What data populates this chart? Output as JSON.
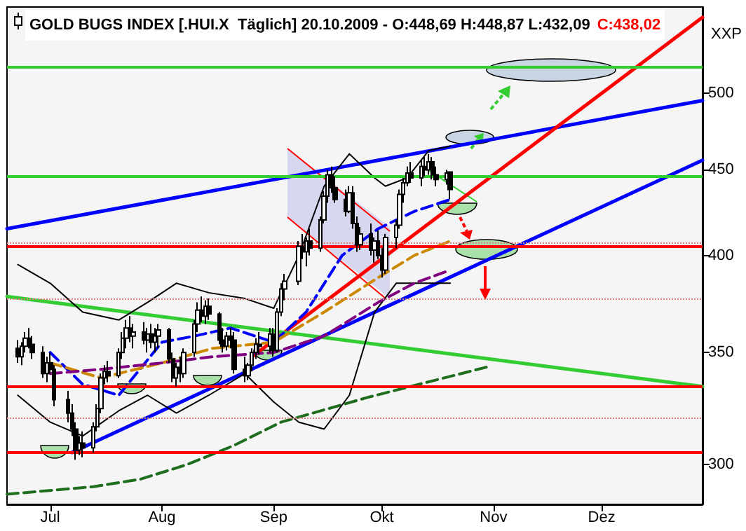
{
  "chart_data": {
    "type": "candlestick",
    "title": "GOLD BUGS INDEX [.HUI.X  Täglich] 20.10.2009 - O:448,69 H:448,87 L:432,09",
    "annotations": [
      "C:438,02"
    ],
    "ylabel": "XXP",
    "log": "y",
    "grid": false,
    "xlim": [
      "2009-06-19",
      "2009-12-29"
    ],
    "xticks": [
      {
        "value": "2009-07-01",
        "label": "Jul"
      },
      {
        "value": "2009-08-01",
        "label": "Aug"
      },
      {
        "value": "2009-09-01",
        "label": "Sep"
      },
      {
        "value": "2009-10-01",
        "label": "Okt"
      },
      {
        "value": "2009-11-01",
        "label": "Nov"
      },
      {
        "value": "2009-12-01",
        "label": "Dez"
      }
    ],
    "ylim": [
      284,
      563
    ],
    "yticks": [
      300,
      350,
      400,
      450,
      500
    ],
    "x": [
      "2009-06-22",
      "2009-06-23",
      "2009-06-24",
      "2009-06-25",
      "2009-06-26",
      "2009-06-29",
      "2009-06-30",
      "2009-07-01",
      "2009-07-02",
      "2009-07-06",
      "2009-07-07",
      "2009-07-08",
      "2009-07-09",
      "2009-07-10",
      "2009-07-13",
      "2009-07-14",
      "2009-07-15",
      "2009-07-16",
      "2009-07-17",
      "2009-07-20",
      "2009-07-21",
      "2009-07-22",
      "2009-07-23",
      "2009-07-24",
      "2009-07-27",
      "2009-07-28",
      "2009-07-29",
      "2009-07-30",
      "2009-07-31",
      "2009-08-03",
      "2009-08-04",
      "2009-08-05",
      "2009-08-06",
      "2009-08-07",
      "2009-08-10",
      "2009-08-11",
      "2009-08-12",
      "2009-08-13",
      "2009-08-14",
      "2009-08-17",
      "2009-08-18",
      "2009-08-19",
      "2009-08-20",
      "2009-08-21",
      "2009-08-24",
      "2009-08-25",
      "2009-08-26",
      "2009-08-27",
      "2009-08-28",
      "2009-08-31",
      "2009-09-01",
      "2009-09-02",
      "2009-09-03",
      "2009-09-04",
      "2009-09-08",
      "2009-09-09",
      "2009-09-10",
      "2009-09-11",
      "2009-09-14",
      "2009-09-15",
      "2009-09-16",
      "2009-09-17",
      "2009-09-18",
      "2009-09-21",
      "2009-09-22",
      "2009-09-23",
      "2009-09-24",
      "2009-09-25",
      "2009-09-28",
      "2009-09-29",
      "2009-09-30",
      "2009-10-01",
      "2009-10-02",
      "2009-10-05",
      "2009-10-06",
      "2009-10-07",
      "2009-10-08",
      "2009-10-09",
      "2009-10-12",
      "2009-10-13",
      "2009-10-14",
      "2009-10-15",
      "2009-10-16",
      "2009-10-19",
      "2009-10-20"
    ],
    "ohlc": [
      [
        352,
        356,
        345,
        348
      ],
      [
        348,
        355,
        344,
        353
      ],
      [
        353,
        360,
        350,
        357
      ],
      [
        357,
        362,
        352,
        354
      ],
      [
        354,
        358,
        347,
        350
      ],
      [
        350,
        353,
        338,
        340
      ],
      [
        340,
        348,
        336,
        345
      ],
      [
        345,
        350,
        340,
        342
      ],
      [
        342,
        344,
        325,
        328
      ],
      [
        328,
        332,
        318,
        322
      ],
      [
        322,
        326,
        312,
        315
      ],
      [
        315,
        318,
        302,
        306
      ],
      [
        306,
        312,
        304,
        309
      ],
      [
        309,
        314,
        303,
        307
      ],
      [
        307,
        318,
        305,
        316
      ],
      [
        316,
        326,
        314,
        324
      ],
      [
        324,
        340,
        322,
        338
      ],
      [
        338,
        344,
        335,
        341
      ],
      [
        341,
        346,
        336,
        339
      ],
      [
        339,
        352,
        338,
        350
      ],
      [
        350,
        360,
        347,
        357
      ],
      [
        357,
        366,
        352,
        362
      ],
      [
        362,
        368,
        355,
        358
      ],
      [
        358,
        364,
        352,
        360
      ],
      [
        360,
        365,
        354,
        356
      ],
      [
        356,
        362,
        350,
        359
      ],
      [
        359,
        364,
        352,
        355
      ],
      [
        355,
        362,
        350,
        358
      ],
      [
        358,
        364,
        352,
        361
      ],
      [
        361,
        362,
        345,
        347
      ],
      [
        347,
        350,
        336,
        338
      ],
      [
        338,
        345,
        334,
        343
      ],
      [
        343,
        348,
        336,
        340
      ],
      [
        340,
        352,
        338,
        350
      ],
      [
        350,
        366,
        348,
        364
      ],
      [
        364,
        375,
        360,
        371
      ],
      [
        371,
        378,
        365,
        368
      ],
      [
        368,
        376,
        364,
        373
      ],
      [
        373,
        377,
        366,
        369
      ],
      [
        369,
        370,
        354,
        356
      ],
      [
        356,
        362,
        350,
        353
      ],
      [
        353,
        360,
        351,
        358
      ],
      [
        358,
        362,
        352,
        356
      ],
      [
        356,
        360,
        340,
        342
      ],
      [
        342,
        348,
        336,
        339
      ],
      [
        339,
        345,
        337,
        344
      ],
      [
        344,
        352,
        341,
        350
      ],
      [
        350,
        357,
        347,
        354
      ],
      [
        354,
        360,
        349,
        353
      ],
      [
        353,
        362,
        350,
        359
      ],
      [
        359,
        362,
        348,
        351
      ],
      [
        351,
        372,
        350,
        370
      ],
      [
        370,
        385,
        368,
        382
      ],
      [
        382,
        390,
        376,
        386
      ],
      [
        386,
        408,
        384,
        405
      ],
      [
        405,
        412,
        398,
        402
      ],
      [
        402,
        410,
        394,
        408
      ],
      [
        408,
        415,
        400,
        404
      ],
      [
        404,
        422,
        402,
        420
      ],
      [
        420,
        437,
        418,
        434
      ],
      [
        434,
        450,
        430,
        447
      ],
      [
        447,
        452,
        436,
        439
      ],
      [
        439,
        446,
        430,
        432
      ],
      [
        432,
        438,
        422,
        425
      ],
      [
        425,
        440,
        424,
        436
      ],
      [
        436,
        440,
        415,
        418
      ],
      [
        418,
        422,
        402,
        406
      ],
      [
        406,
        416,
        403,
        412
      ],
      [
        412,
        418,
        400,
        403
      ],
      [
        403,
        410,
        396,
        408
      ],
      [
        408,
        414,
        398,
        400
      ],
      [
        400,
        404,
        388,
        392
      ],
      [
        392,
        412,
        390,
        410
      ],
      [
        410,
        420,
        404,
        417
      ],
      [
        417,
        438,
        415,
        435
      ],
      [
        435,
        445,
        430,
        442
      ],
      [
        442,
        452,
        440,
        448
      ],
      [
        448,
        455,
        442,
        445
      ],
      [
        445,
        456,
        440,
        452
      ],
      [
        452,
        458,
        446,
        450
      ],
      [
        450,
        460,
        447,
        455
      ],
      [
        455,
        458,
        444,
        447
      ],
      [
        447,
        452,
        440,
        444
      ],
      [
        444,
        450,
        441,
        448
      ],
      [
        448.69,
        448.87,
        432.09,
        438.02
      ]
    ],
    "series": [
      {
        "type": "line",
        "color": "#0000ff",
        "line_style": "solid",
        "x": [
          "2009-06-19",
          "2009-12-29"
        ],
        "values": [
          415,
          495
        ]
      },
      {
        "type": "line",
        "color": "#0000ff",
        "line_style": "solid",
        "x": [
          "2009-07-07",
          "2009-12-29"
        ],
        "values": [
          305,
          456
        ]
      },
      {
        "type": "line",
        "color": "#ff0000",
        "line_style": "solid",
        "x": [
          "2009-08-26",
          "2009-12-29"
        ],
        "values": [
          348,
          555
        ]
      },
      {
        "type": "line",
        "color": "#33cc33",
        "line_style": "solid",
        "x": [
          "2009-06-19",
          "2009-12-29"
        ],
        "values": [
          378,
          334
        ]
      },
      {
        "type": "line",
        "color": "#1e6e1e",
        "line_style": "dashed",
        "x": [
          "2009-06-19",
          "2009-07-13",
          "2009-07-26",
          "2009-08-08",
          "2009-08-21",
          "2009-09-03",
          "2009-09-27",
          "2009-10-30"
        ],
        "values": [
          288,
          291,
          294,
          300,
          308,
          318,
          329,
          343
        ]
      },
      {
        "type": "line",
        "color": "#000000",
        "line_style": "solid",
        "x": [
          "2009-06-22",
          "2009-07-01",
          "2009-07-10",
          "2009-07-20",
          "2009-07-28",
          "2009-08-05",
          "2009-08-14",
          "2009-08-24",
          "2009-09-01",
          "2009-09-08",
          "2009-09-15",
          "2009-09-22",
          "2009-09-29",
          "2009-10-02",
          "2009-10-08",
          "2009-10-14",
          "2009-10-20"
        ],
        "values": [
          395,
          385,
          370,
          366,
          375,
          385,
          380,
          377,
          372,
          400,
          440,
          460,
          445,
          440,
          445,
          462,
          465
        ]
      },
      {
        "type": "line",
        "color": "#000000",
        "line_style": "solid",
        "x": [
          "2009-06-22",
          "2009-07-01",
          "2009-07-10",
          "2009-07-20",
          "2009-07-28",
          "2009-08-05",
          "2009-08-14",
          "2009-08-24",
          "2009-09-01",
          "2009-09-08",
          "2009-09-15",
          "2009-09-22",
          "2009-09-29",
          "2009-10-05",
          "2009-10-12",
          "2009-10-20"
        ],
        "values": [
          330,
          318,
          312,
          323,
          330,
          322,
          330,
          340,
          327,
          318,
          315,
          330,
          370,
          385,
          385,
          385
        ]
      },
      {
        "type": "line",
        "color": "#0000ff",
        "line_style": "dashed",
        "x": [
          "2009-07-01",
          "2009-07-10",
          "2009-07-20",
          "2009-08-01",
          "2009-08-10",
          "2009-08-20",
          "2009-09-01",
          "2009-09-10",
          "2009-09-20",
          "2009-09-30",
          "2009-10-10",
          "2009-10-20"
        ],
        "values": [
          350,
          335,
          330,
          355,
          358,
          362,
          355,
          370,
          400,
          415,
          425,
          432
        ]
      },
      {
        "type": "line",
        "color": "#cc8800",
        "line_style": "dashed",
        "x": [
          "2009-07-01",
          "2009-07-15",
          "2009-08-01",
          "2009-08-15",
          "2009-09-01",
          "2009-09-15",
          "2009-09-30",
          "2009-10-10",
          "2009-10-20"
        ],
        "values": [
          345,
          338,
          345,
          352,
          355,
          370,
          388,
          400,
          408
        ]
      },
      {
        "type": "line",
        "color": "#800080",
        "line_style": "dashed",
        "x": [
          "2009-07-01",
          "2009-07-15",
          "2009-08-01",
          "2009-08-15",
          "2009-09-01",
          "2009-09-15",
          "2009-09-30",
          "2009-10-10",
          "2009-10-20"
        ],
        "values": [
          340,
          342,
          345,
          348,
          350,
          358,
          375,
          385,
          392
        ]
      }
    ],
    "ref_lines": [
      {
        "axis": "y",
        "value": 405,
        "color": "#ff0000",
        "line_style": "solid"
      },
      {
        "axis": "y",
        "value": 334,
        "color": "#ff0000",
        "line_style": "solid"
      },
      {
        "axis": "y",
        "value": 305,
        "color": "#ff0000",
        "line_style": "solid"
      },
      {
        "axis": "y",
        "value": 518,
        "color": "#33cc33",
        "line_style": "solid"
      },
      {
        "axis": "y",
        "value": 446,
        "color": "#33cc33",
        "line_style": "solid"
      },
      {
        "axis": "y",
        "value": 407,
        "color": "#e08080",
        "line_style": "dotted"
      },
      {
        "axis": "y",
        "value": 377,
        "color": "#e08080",
        "line_style": "dotted"
      },
      {
        "axis": "y",
        "value": 320,
        "color": "#e08080",
        "line_style": "dotted"
      }
    ]
  }
}
